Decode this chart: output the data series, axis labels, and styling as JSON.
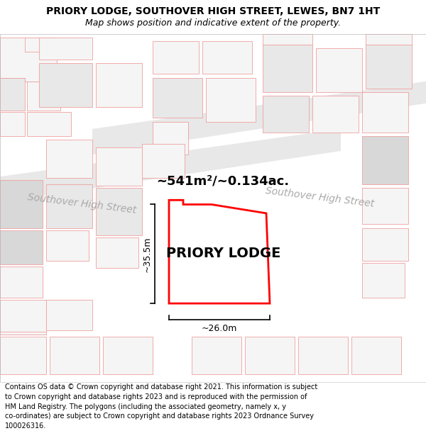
{
  "title": "PRIORY LODGE, SOUTHOVER HIGH STREET, LEWES, BN7 1HT",
  "subtitle": "Map shows position and indicative extent of the property.",
  "footer_line1": "Contains OS data © Crown copyright and database right 2021. This information is subject",
  "footer_line2": "to Crown copyright and database rights 2023 and is reproduced with the permission of",
  "footer_line3": "HM Land Registry. The polygons (including the associated geometry, namely x, y",
  "footer_line4": "co-ordinates) are subject to Crown copyright and database rights 2023 Ordnance Survey",
  "footer_line5": "100026316.",
  "road_label_upper": "Southover High Street",
  "road_label_lower": "Southover High Street",
  "property_label": "PRIORY LODGE",
  "area_label": "~541m²/~0.134ac.",
  "width_label": "~26.0m",
  "height_label": "~35.5m",
  "highlight_color": "#ff0000",
  "highlight_fill": "#ffffff",
  "outline_color": "#f0a0a0",
  "building_fill_light": "#f5f5f5",
  "building_fill_mid": "#e8e8e8",
  "building_fill_dark": "#d8d8d8",
  "road_fill": "#e8e8e8",
  "map_bg": "#ffffff",
  "title_fontsize": 10,
  "subtitle_fontsize": 9,
  "footer_fontsize": 7,
  "label_fontsize": 14,
  "area_fontsize": 13,
  "dim_fontsize": 9,
  "road_fontsize": 10
}
